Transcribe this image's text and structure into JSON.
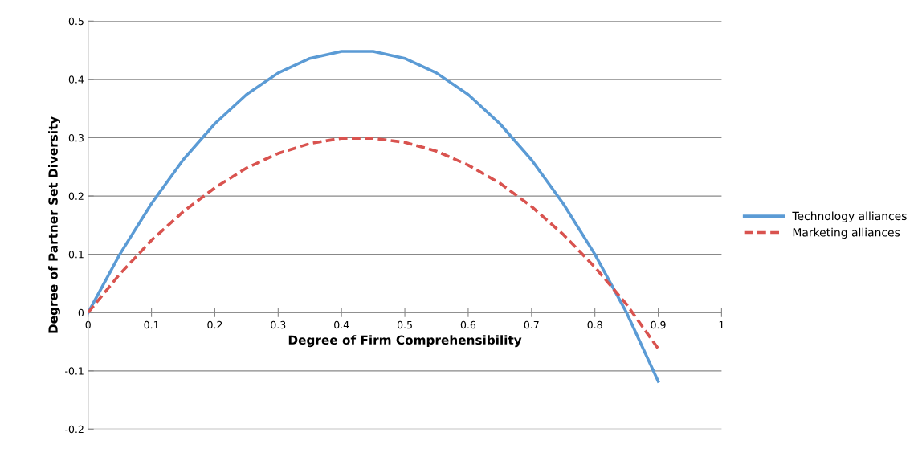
{
  "chart_data": {
    "type": "line",
    "xlabel": "Degree of Firm Comprehensibility",
    "ylabel": "Degree of Partner Set Diversity",
    "xlim": [
      0,
      1
    ],
    "ylim": [
      -0.2,
      0.5
    ],
    "xticks": [
      0,
      0.1,
      0.2,
      0.3,
      0.4,
      0.5,
      0.6,
      0.7,
      0.8,
      0.9,
      1
    ],
    "yticks": [
      -0.2,
      -0.1,
      0,
      0.1,
      0.2,
      0.3,
      0.4,
      0.5
    ],
    "grid": "y",
    "legend": "right",
    "marker": "none",
    "series": [
      {
        "name": "Technology alliances",
        "color": "#5b9bd5",
        "line_style": "solid",
        "x": [
          0,
          0.05,
          0.1,
          0.15,
          0.2,
          0.25,
          0.3,
          0.35,
          0.4,
          0.45,
          0.5,
          0.55,
          0.6,
          0.65,
          0.7,
          0.75,
          0.8,
          0.85,
          0.9
        ],
        "values": [
          0,
          0.1,
          0.187,
          0.262,
          0.324,
          0.374,
          0.411,
          0.436,
          0.448,
          0.448,
          0.436,
          0.411,
          0.374,
          0.324,
          0.262,
          0.187,
          0.1,
          0.0,
          -0.118
        ]
      },
      {
        "name": "Marketing alliances",
        "color": "#d9534f",
        "line_style": "dashed",
        "x": [
          0,
          0.05,
          0.1,
          0.15,
          0.2,
          0.25,
          0.3,
          0.35,
          0.4,
          0.45,
          0.5,
          0.55,
          0.6,
          0.65,
          0.7,
          0.75,
          0.8,
          0.85,
          0.9
        ],
        "values": [
          0,
          0.066,
          0.124,
          0.173,
          0.214,
          0.248,
          0.273,
          0.29,
          0.299,
          0.299,
          0.292,
          0.277,
          0.253,
          0.222,
          0.182,
          0.134,
          0.078,
          0.014,
          -0.062
        ]
      }
    ]
  }
}
